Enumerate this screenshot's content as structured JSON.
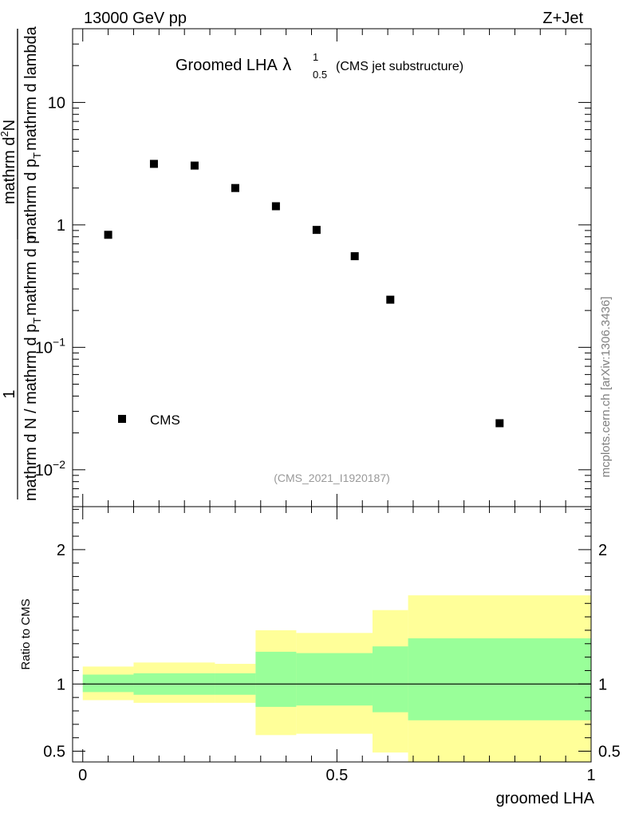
{
  "header": {
    "left": "13000 GeV pp",
    "right": "Z+Jet"
  },
  "watermark": "mcplots.cern.ch [arXiv:1306.3436]",
  "analysis_id": "(CMS_2021_I1920187)",
  "colors": {
    "band_outer": "#ffff99",
    "band_inner": "#99ff99",
    "marker": "#000000"
  },
  "chart_data": [
    {
      "type": "scatter",
      "title_main": "Groomed LHA",
      "title_lambda": "λ",
      "title_sup": "1",
      "title_sub": "0.5",
      "title_suffix": "(CMS jet substructure)",
      "ylabel_1": "1",
      "ylabel_2": "mathrm d N / mathrm d p",
      "ylabel_2_sub": "T",
      "ylabel_2_tail": "mathrm d p",
      "ylabel_num": "mathrm d",
      "ylabel_num_exp": "2",
      "ylabel_num_tail": "N",
      "ylabel_den": "mathrm d p",
      "ylabel_den_sub": "T",
      "ylabel_den_tail": "mathrm d lambda",
      "yscale": "log",
      "ylim": [
        0.005,
        40
      ],
      "xlim": [
        -0.02,
        1.0
      ],
      "ytick_labels": [
        {
          "value": 10,
          "base": "10",
          "exp": ""
        },
        {
          "value": 1,
          "base": "1",
          "exp": ""
        },
        {
          "value": 0.1,
          "base": "10",
          "exp": "−1"
        },
        {
          "value": 0.01,
          "base": "10",
          "exp": "−2"
        }
      ],
      "series": [
        {
          "name": "CMS",
          "x": [
            0.05,
            0.14,
            0.22,
            0.3,
            0.38,
            0.46,
            0.535,
            0.605,
            0.82
          ],
          "y": [
            0.83,
            3.15,
            3.05,
            2.0,
            1.42,
            0.91,
            0.555,
            0.245,
            0.024
          ]
        }
      ],
      "legend": {
        "label": "CMS",
        "placement": "lower-left"
      }
    },
    {
      "type": "area",
      "ylabel": "Ratio to CMS",
      "xlabel": "groomed LHA",
      "xlim": [
        -0.02,
        1.0
      ],
      "ylim": [
        0.42,
        2.32
      ],
      "ytick_labels": [
        {
          "value": 2,
          "label": "2"
        },
        {
          "value": 1,
          "label": "1"
        },
        {
          "value": 0.5,
          "label": "0.5"
        }
      ],
      "xtick_labels": [
        {
          "value": 0,
          "label": "0"
        },
        {
          "value": 0.5,
          "label": "0.5"
        },
        {
          "value": 1,
          "label": "1"
        }
      ],
      "bins": [
        0.0,
        0.1,
        0.26,
        0.34,
        0.42,
        0.57,
        0.64,
        1.0
      ],
      "outer_band": {
        "lo": [
          0.88,
          0.86,
          0.86,
          0.62,
          0.63,
          0.49,
          0.0
        ],
        "hi": [
          1.13,
          1.16,
          1.15,
          1.4,
          1.38,
          1.55,
          1.66
        ]
      },
      "inner_band": {
        "lo": [
          0.94,
          0.92,
          0.92,
          0.83,
          0.84,
          0.79,
          0.73
        ],
        "hi": [
          1.07,
          1.08,
          1.08,
          1.24,
          1.23,
          1.28,
          1.34
        ]
      },
      "reference_line": 1
    }
  ]
}
